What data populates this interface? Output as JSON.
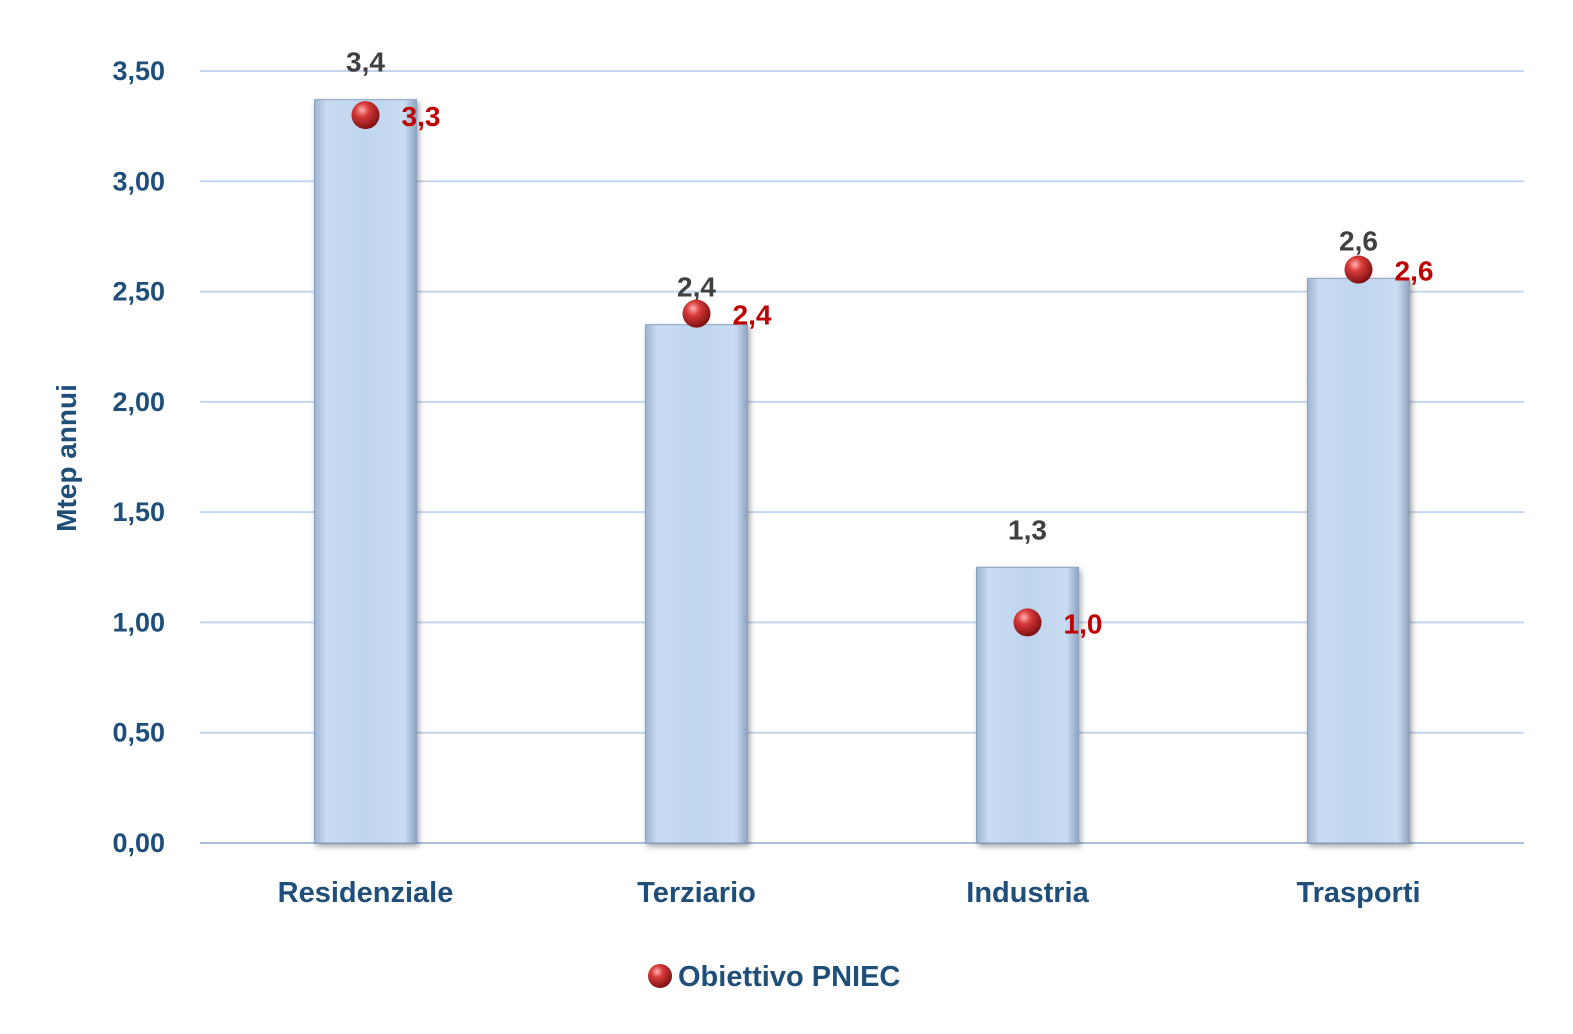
{
  "chart_data": {
    "type": "bar",
    "categories": [
      "Residenziale",
      "Terziario",
      "Industria",
      "Trasporti"
    ],
    "series": [
      {
        "values": [
          3.37,
          2.35,
          1.25,
          2.56
        ],
        "labels": [
          "3,4",
          "2,4",
          "1,3",
          "2,6"
        ]
      },
      {
        "name": "Obiettivo PNIEC",
        "type": "scatter",
        "values": [
          3.3,
          2.4,
          1.0,
          2.6
        ],
        "labels": [
          "3,3",
          "2,4",
          "1,0",
          "2,6"
        ]
      }
    ],
    "ylabel": "Mtep annui",
    "ylim": [
      0,
      3.5
    ],
    "yticks": [
      0,
      0.5,
      1.0,
      1.5,
      2.0,
      2.5,
      3.0,
      3.5
    ],
    "ytick_labels": [
      "0,00",
      "0,50",
      "1,00",
      "1,50",
      "2,00",
      "2,50",
      "3,00",
      "3,50"
    ],
    "grid": true,
    "legend": "bottom-center",
    "colors": {
      "bar": "#bcd3ee",
      "point": "#c0262c",
      "grid": "#c5d7ee",
      "axis_text": "#1f4e79",
      "bar_label": "#404040",
      "point_label": "#c00000"
    }
  }
}
